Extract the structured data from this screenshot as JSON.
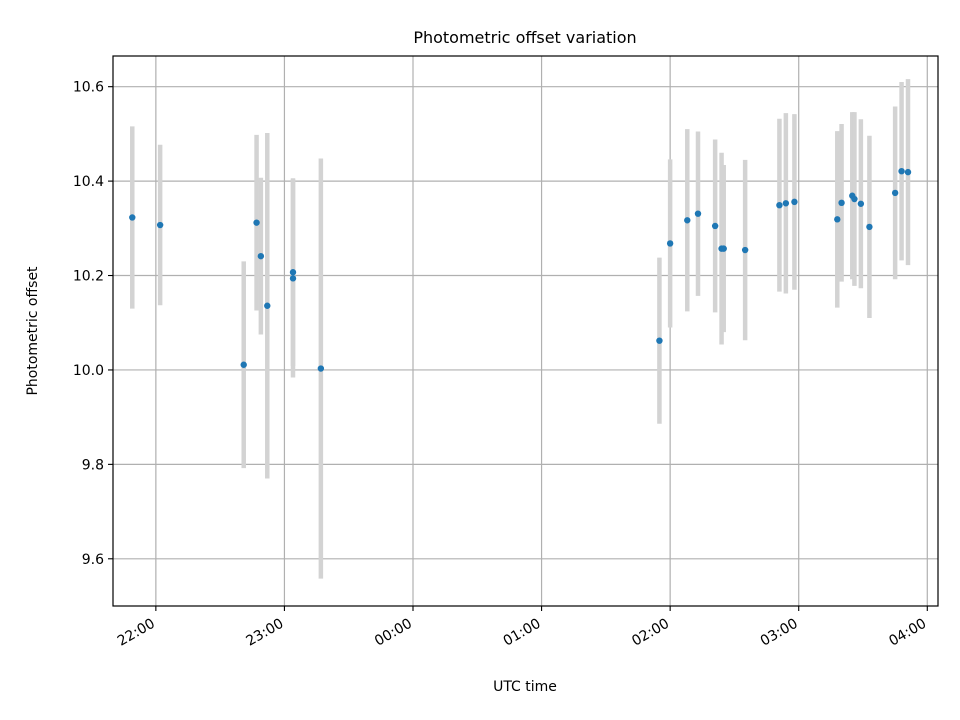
{
  "chart_data": {
    "type": "scatter",
    "title": "Photometric offset variation",
    "xlabel": "UTC time",
    "ylabel": "Photometric offset",
    "x_tick_labels": [
      "22:00",
      "23:00",
      "00:00",
      "01:00",
      "02:00",
      "03:00",
      "04:00"
    ],
    "y_tick_labels": [
      "9.6",
      "9.8",
      "10.0",
      "10.2",
      "10.4",
      "10.6"
    ],
    "xlim": [
      "21:40",
      "04:05"
    ],
    "ylim": [
      9.5,
      10.665
    ],
    "grid": true,
    "colors": {
      "marker": "#1f77b4",
      "errorbar": "#d3d3d3",
      "grid": "#b0b0b0"
    },
    "points": [
      {
        "x": "21:49",
        "y": 10.323,
        "yerr": 0.193
      },
      {
        "x": "22:02",
        "y": 10.307,
        "yerr": 0.17
      },
      {
        "x": "22:41",
        "y": 10.011,
        "yerr": 0.219
      },
      {
        "x": "22:47",
        "y": 10.312,
        "yerr": 0.186
      },
      {
        "x": "22:49",
        "y": 10.241,
        "yerr": 0.166
      },
      {
        "x": "22:52",
        "y": 10.136,
        "yerr": 0.366
      },
      {
        "x": "23:04",
        "y": 10.207,
        "yerr": 0.199
      },
      {
        "x": "23:04",
        "y": 10.194,
        "yerr": 0.21
      },
      {
        "x": "23:17",
        "y": 10.003,
        "yerr": 0.445
      },
      {
        "x": "01:55",
        "y": 10.062,
        "yerr": 0.176
      },
      {
        "x": "02:00",
        "y": 10.268,
        "yerr": 0.178
      },
      {
        "x": "02:08",
        "y": 10.317,
        "yerr": 0.193
      },
      {
        "x": "02:13",
        "y": 10.331,
        "yerr": 0.174
      },
      {
        "x": "02:21",
        "y": 10.305,
        "yerr": 0.183
      },
      {
        "x": "02:24",
        "y": 10.257,
        "yerr": 0.203
      },
      {
        "x": "02:25",
        "y": 10.257,
        "yerr": 0.177
      },
      {
        "x": "02:35",
        "y": 10.254,
        "yerr": 0.191
      },
      {
        "x": "02:51",
        "y": 10.349,
        "yerr": 0.183
      },
      {
        "x": "02:54",
        "y": 10.353,
        "yerr": 0.191
      },
      {
        "x": "02:58",
        "y": 10.356,
        "yerr": 0.186
      },
      {
        "x": "03:18",
        "y": 10.319,
        "yerr": 0.187
      },
      {
        "x": "03:20",
        "y": 10.354,
        "yerr": 0.167
      },
      {
        "x": "03:25",
        "y": 10.369,
        "yerr": 0.177
      },
      {
        "x": "03:26",
        "y": 10.362,
        "yerr": 0.184
      },
      {
        "x": "03:29",
        "y": 10.352,
        "yerr": 0.179
      },
      {
        "x": "03:33",
        "y": 10.303,
        "yerr": 0.193
      },
      {
        "x": "03:45",
        "y": 10.375,
        "yerr": 0.183
      },
      {
        "x": "03:48",
        "y": 10.421,
        "yerr": 0.189
      },
      {
        "x": "03:51",
        "y": 10.419,
        "yerr": 0.197
      }
    ]
  }
}
